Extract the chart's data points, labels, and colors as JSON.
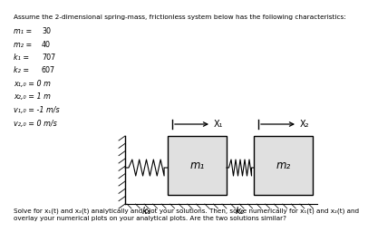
{
  "title": "Assume the 2-dimensional spring-mass, frictionless system below has the following characteristics:",
  "param_lines": [
    [
      "m₁ =",
      "30"
    ],
    [
      "m₂ =",
      "40"
    ],
    [
      "k₁ =",
      "707"
    ],
    [
      "k₂ =",
      "607"
    ],
    [
      "x₁,₀ = 0 m",
      ""
    ],
    [
      "x₂,₀ = 1 m",
      ""
    ],
    [
      "v₁,₀ = -1 m/s",
      ""
    ],
    [
      "v₂,₀ = 0 m/s",
      ""
    ]
  ],
  "footer": "Solve for x₁(t) and x₂(t) analytically and plot your solutions. Then, solve numerically for x₁(t) and x₂(t) and\noverlay your numerical plots on your analytical plots. Are the two solutions similar?",
  "bg_color": "#ffffff",
  "text_color": "#000000",
  "label_m1": "m₁",
  "label_m2": "m₂",
  "label_k1": "k₁",
  "label_k2": "k₂",
  "label_x1": "X₁",
  "label_x2": "X₂"
}
